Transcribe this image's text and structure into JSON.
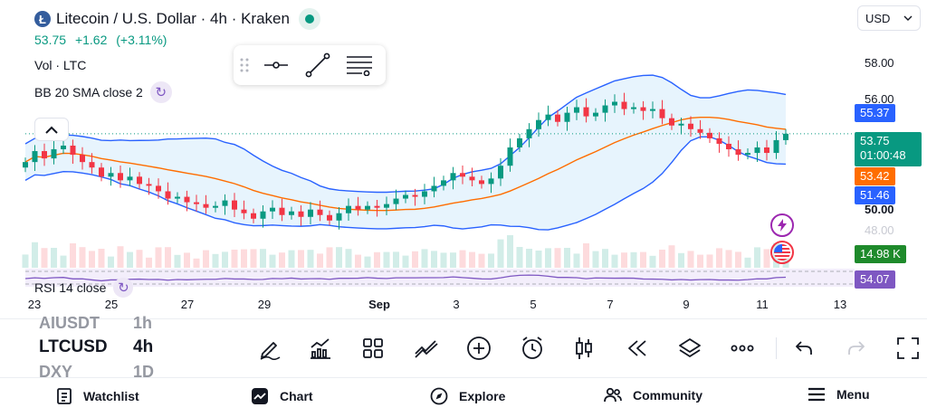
{
  "header": {
    "title": "Litecoin / U.S. Dollar · 4h · Kraken",
    "logo_letter": "Ł",
    "last": "53.75",
    "change": "+1.62",
    "change_pct": "(+3.11%)",
    "volume_label": "Vol · LTC",
    "bb_label": "BB 20 SMA close 2"
  },
  "currency": {
    "value": "USD"
  },
  "price_axis": {
    "ticks": [
      "58.00",
      "56.00",
      "50.00",
      "48.00"
    ],
    "tags": {
      "bb_upper": "55.37",
      "last_price": "53.75",
      "countdown": "01:00:48",
      "bb_basis": "53.42",
      "bb_lower": "51.46",
      "volume": "14.98 K",
      "rsi": "54.07"
    }
  },
  "rsi": {
    "label": "RSI 14 close"
  },
  "time_axis": {
    "labels": [
      {
        "text": "23",
        "bold": false
      },
      {
        "text": "25",
        "bold": false
      },
      {
        "text": "27",
        "bold": false
      },
      {
        "text": "29",
        "bold": false
      },
      {
        "text": "Sep",
        "bold": true
      },
      {
        "text": "3",
        "bold": false
      },
      {
        "text": "5",
        "bold": false
      },
      {
        "text": "7",
        "bold": false
      },
      {
        "text": "9",
        "bold": false
      },
      {
        "text": "11",
        "bold": false
      },
      {
        "text": "13",
        "bold": false
      }
    ]
  },
  "symbol_bar": {
    "prev_symbol": "AIUSDT",
    "prev_interval": "1h",
    "symbol": "LTCUSD",
    "interval": "4h",
    "next_symbol": "DXY",
    "next_interval": "1D"
  },
  "nav": {
    "watchlist": "Watchlist",
    "chart": "Chart",
    "explore": "Explore",
    "community": "Community",
    "menu": "Menu"
  },
  "colors": {
    "up": "#089981",
    "down": "#f23645",
    "bb_band": "#2962ff",
    "bb_basis": "#ff6d00",
    "rsi": "#7e57c2",
    "volume_tag": "#1e8a2b"
  },
  "chart_data": {
    "type": "candlestick",
    "symbol": "LTCUSD",
    "interval": "4h",
    "x_axis_labels": [
      "23",
      "25",
      "27",
      "29",
      "Sep",
      "3",
      "5",
      "7",
      "9",
      "11",
      "13"
    ],
    "y_axis_ticks": [
      58,
      56,
      50,
      48
    ],
    "close_path": [
      52.2,
      52.8,
      52.4,
      52.9,
      53.1,
      52.6,
      52.2,
      51.9,
      51.4,
      51.6,
      51.2,
      51.4,
      51.0,
      50.9,
      50.6,
      50.2,
      50.3,
      50.0,
      49.9,
      49.7,
      49.8,
      50.1,
      49.6,
      49.4,
      49.1,
      49.5,
      49.7,
      49.3,
      49.5,
      49.2,
      49.6,
      49.3,
      49.0,
      49.4,
      49.8,
      49.6,
      49.8,
      49.7,
      49.9,
      50.2,
      50.4,
      50.3,
      50.6,
      50.9,
      51.2,
      51.6,
      51.4,
      51.2,
      51.0,
      51.3,
      52.0,
      53.0,
      53.5,
      54.0,
      54.5,
      54.8,
      54.4,
      54.9,
      55.2,
      54.7,
      54.9,
      55.3,
      55.5,
      55.1,
      55.2,
      55.0,
      55.1,
      54.6,
      54.2,
      54.3,
      54.0,
      53.8,
      53.5,
      53.2,
      52.9,
      52.6,
      52.7,
      53.0,
      52.7,
      53.4,
      53.75
    ],
    "bb_upper": 55.37,
    "bb_basis": 53.42,
    "bb_lower": 51.46,
    "last_price": 53.75,
    "volume_last": "14.98 K",
    "rsi_last": 54.07
  }
}
